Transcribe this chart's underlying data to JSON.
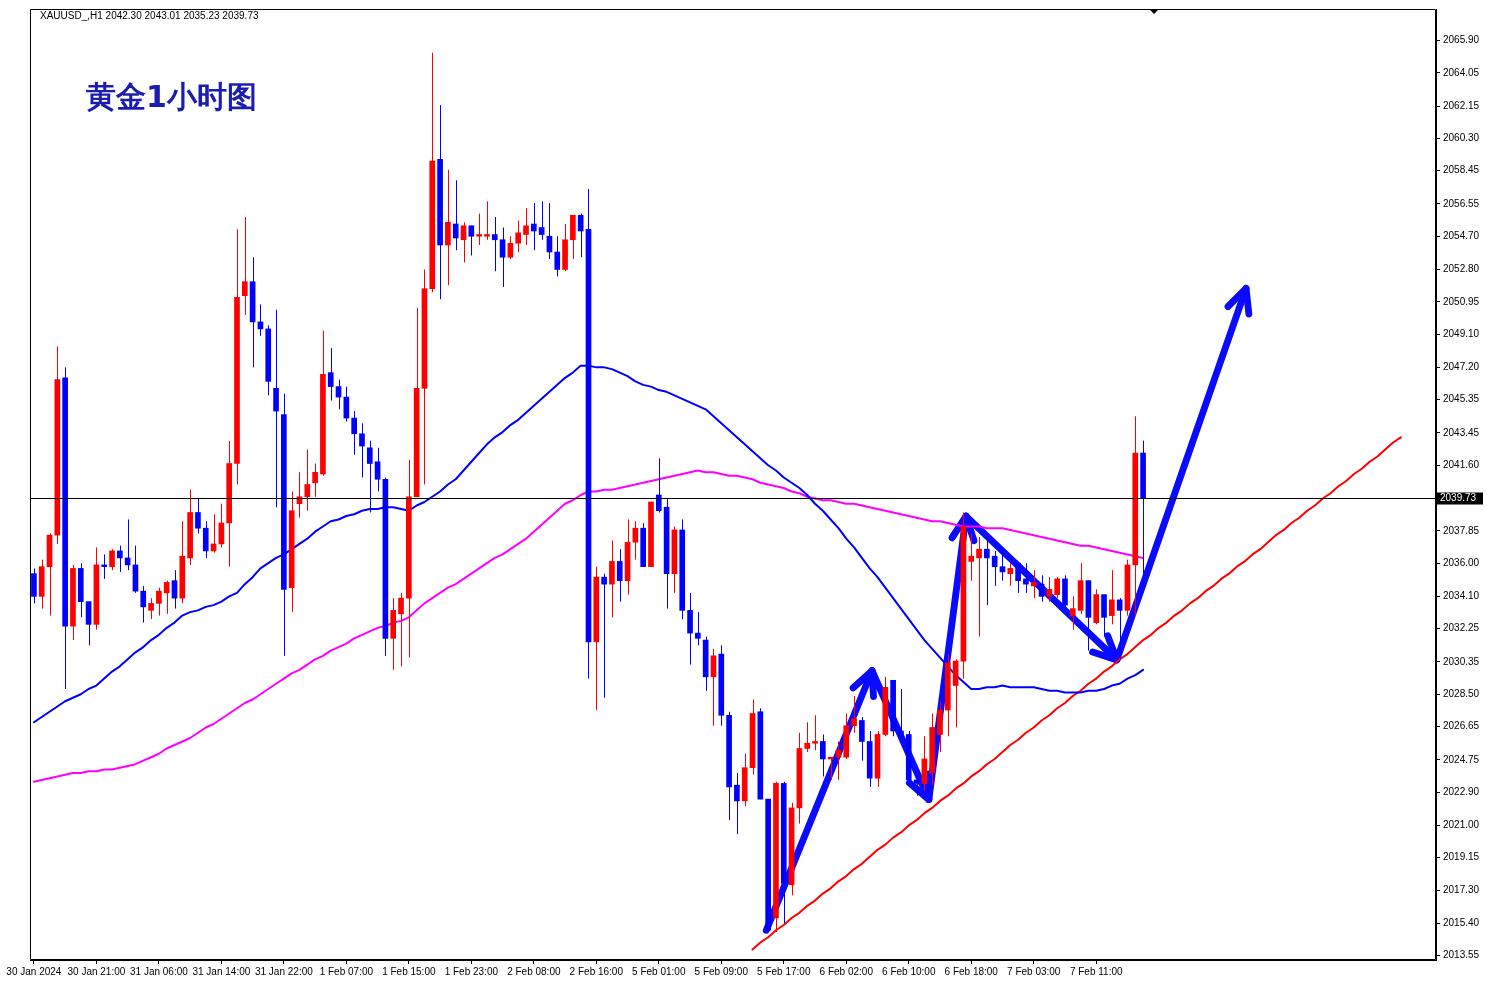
{
  "chart_data": {
    "type": "candlestick",
    "title": "黄金1小时图",
    "annotations": [
      "XAUUSD_,H1 2042.30 2043.01 2035.23 2039.73"
    ],
    "categories": [
      "30 Jan 2024",
      null,
      null,
      null,
      null,
      null,
      null,
      null,
      "30 Jan 21:00",
      null,
      null,
      null,
      null,
      null,
      null,
      null,
      "31 Jan 06:00",
      null,
      null,
      null,
      null,
      null,
      null,
      null,
      "31 Jan 14:00",
      null,
      null,
      null,
      null,
      null,
      null,
      null,
      "31 Jan 22:00",
      null,
      null,
      null,
      null,
      null,
      null,
      null,
      "1 Feb 07:00",
      null,
      null,
      null,
      null,
      null,
      null,
      null,
      "1 Feb 15:00",
      null,
      null,
      null,
      null,
      null,
      null,
      null,
      "1 Feb 23:00",
      null,
      null,
      null,
      null,
      null,
      null,
      null,
      "2 Feb 08:00",
      null,
      null,
      null,
      null,
      null,
      null,
      null,
      "2 Feb 16:00",
      null,
      null,
      null,
      null,
      null,
      null,
      null,
      "5 Feb 01:00",
      null,
      null,
      null,
      null,
      null,
      null,
      null,
      "5 Feb 09:00",
      null,
      null,
      null,
      null,
      null,
      null,
      null,
      "5 Feb 17:00",
      null,
      null,
      null,
      null,
      null,
      null,
      null,
      "6 Feb 02:00",
      null,
      null,
      null,
      null,
      null,
      null,
      null,
      "6 Feb 10:00",
      null,
      null,
      null,
      null,
      null,
      null,
      null,
      "6 Feb 18:00",
      null,
      null,
      null,
      null,
      null,
      null,
      null,
      "7 Feb 03:00",
      null,
      null,
      null,
      null,
      null,
      null,
      null,
      "7 Feb 11:00",
      null,
      null,
      null,
      null,
      null,
      null,
      null,
      null,
      null,
      null,
      null,
      null,
      null,
      null,
      null,
      null,
      null,
      null,
      null,
      null,
      null,
      null,
      null,
      null,
      null,
      null,
      null,
      null,
      null,
      null,
      null,
      null,
      null,
      null,
      null,
      null,
      null,
      null,
      null,
      null,
      null,
      null,
      null
    ],
    "ohlc": [
      [
        2035.4,
        2035.7,
        2033.7,
        2034.1
      ],
      [
        2034.1,
        2036.2,
        2033.4,
        2035.8
      ],
      [
        2035.8,
        2037.7,
        2033.0,
        2037.6
      ],
      [
        2037.6,
        2048.4,
        2037.1,
        2046.5
      ],
      [
        2046.6,
        2047.2,
        2028.8,
        2032.4
      ],
      [
        2032.4,
        2035.9,
        2031.6,
        2035.7
      ],
      [
        2035.7,
        2036.0,
        2032.9,
        2033.8
      ],
      [
        2033.8,
        2033.8,
        2031.3,
        2032.5
      ],
      [
        2032.5,
        2036.9,
        2032.2,
        2035.9
      ],
      [
        2035.9,
        2036.5,
        2035.1,
        2035.8
      ],
      [
        2035.8,
        2036.8,
        2035.6,
        2036.7
      ],
      [
        2036.7,
        2037.0,
        2035.5,
        2036.3
      ],
      [
        2036.3,
        2038.5,
        2035.6,
        2035.9
      ],
      [
        2035.9,
        2037.0,
        2034.3,
        2034.4
      ],
      [
        2034.4,
        2034.7,
        2032.6,
        2033.5
      ],
      [
        2033.3,
        2034.0,
        2032.8,
        2033.7
      ],
      [
        2033.7,
        2034.6,
        2033.0,
        2034.4
      ],
      [
        2034.3,
        2035.0,
        2033.1,
        2034.9
      ],
      [
        2035.0,
        2035.6,
        2033.4,
        2034.0
      ],
      [
        2034.0,
        2038.4,
        2033.7,
        2036.4
      ],
      [
        2036.3,
        2040.2,
        2035.9,
        2038.9
      ],
      [
        2038.9,
        2039.7,
        2037.7,
        2038.0
      ],
      [
        2038.0,
        2038.4,
        2036.3,
        2036.7
      ],
      [
        2036.7,
        2038.8,
        2036.6,
        2037.1
      ],
      [
        2037.1,
        2039.4,
        2036.9,
        2038.3
      ],
      [
        2038.3,
        2043.0,
        2035.8,
        2041.7
      ],
      [
        2041.7,
        2055.1,
        2040.5,
        2051.2
      ],
      [
        2051.3,
        2055.8,
        2050.2,
        2052.1
      ],
      [
        2052.1,
        2053.5,
        2047.2,
        2049.8
      ],
      [
        2049.8,
        2050.8,
        2049.0,
        2049.4
      ],
      [
        2049.4,
        2049.6,
        2045.6,
        2046.4
      ],
      [
        2046.0,
        2050.5,
        2039.2,
        2044.7
      ],
      [
        2044.5,
        2045.7,
        2030.7,
        2034.5
      ],
      [
        2034.6,
        2040.1,
        2033.2,
        2039.0
      ],
      [
        2039.4,
        2041.2,
        2038.6,
        2039.8
      ],
      [
        2039.8,
        2042.5,
        2039.0,
        2040.5
      ],
      [
        2040.6,
        2041.7,
        2039.8,
        2041.2
      ],
      [
        2041.1,
        2049.3,
        2041.0,
        2046.8
      ],
      [
        2046.9,
        2048.3,
        2045.3,
        2046.1
      ],
      [
        2046.1,
        2046.5,
        2044.8,
        2045.5
      ],
      [
        2045.5,
        2046.1,
        2044.1,
        2044.3
      ],
      [
        2044.3,
        2044.7,
        2042.2,
        2043.4
      ],
      [
        2043.4,
        2044.0,
        2040.9,
        2042.7
      ],
      [
        2042.6,
        2043.0,
        2038.9,
        2041.7
      ],
      [
        2041.8,
        2042.6,
        2040.1,
        2040.8
      ],
      [
        2040.8,
        2040.9,
        2030.7,
        2031.7
      ],
      [
        2031.7,
        2034.0,
        2029.9,
        2033.3
      ],
      [
        2033.1,
        2034.3,
        2030.1,
        2034.0
      ],
      [
        2034.0,
        2041.9,
        2030.6,
        2039.8
      ],
      [
        2039.8,
        2050.6,
        2039.8,
        2046.0
      ],
      [
        2046.0,
        2052.8,
        2040.5,
        2051.7
      ],
      [
        2051.7,
        2065.2,
        2051.5,
        2059.0
      ],
      [
        2059.1,
        2062.2,
        2051.1,
        2054.2
      ],
      [
        2054.2,
        2058.5,
        2051.9,
        2055.5
      ],
      [
        2055.4,
        2057.9,
        2053.9,
        2054.6
      ],
      [
        2054.5,
        2055.5,
        2053.2,
        2055.3
      ],
      [
        2055.3,
        2055.3,
        2053.6,
        2054.7
      ],
      [
        2054.7,
        2056.0,
        2054.2,
        2054.8
      ],
      [
        2054.7,
        2056.7,
        2054.5,
        2054.8
      ],
      [
        2054.8,
        2055.8,
        2052.7,
        2054.5
      ],
      [
        2054.5,
        2055.2,
        2051.8,
        2053.5
      ],
      [
        2053.5,
        2054.7,
        2053.4,
        2054.3
      ],
      [
        2054.3,
        2055.6,
        2053.8,
        2054.9
      ],
      [
        2054.8,
        2056.3,
        2054.2,
        2055.3
      ],
      [
        2055.4,
        2056.6,
        2053.9,
        2055.0
      ],
      [
        2055.2,
        2056.7,
        2054.5,
        2054.8
      ],
      [
        2054.7,
        2056.6,
        2053.4,
        2053.8
      ],
      [
        2053.8,
        2054.7,
        2052.4,
        2052.8
      ],
      [
        2052.8,
        2055.4,
        2052.7,
        2054.5
      ],
      [
        2054.5,
        2055.9,
        2053.4,
        2055.9
      ],
      [
        2055.9,
        2056.0,
        2053.5,
        2055.0
      ],
      [
        2055.1,
        2057.4,
        2029.4,
        2031.5
      ],
      [
        2031.5,
        2035.8,
        2027.6,
        2035.2
      ],
      [
        2035.2,
        2035.4,
        2028.3,
        2034.8
      ],
      [
        2034.8,
        2037.3,
        2032.9,
        2036.1
      ],
      [
        2036.1,
        2036.8,
        2033.8,
        2035.0
      ],
      [
        2035.0,
        2038.5,
        2034.2,
        2037.2
      ],
      [
        2037.2,
        2038.4,
        2036.2,
        2038.0
      ],
      [
        2038.0,
        2038.3,
        2035.8,
        2035.8
      ],
      [
        2035.8,
        2039.5,
        2035.8,
        2039.5
      ],
      [
        2039.9,
        2042.0,
        2038.9,
        2039.0
      ],
      [
        2039.2,
        2039.7,
        2033.4,
        2035.4
      ],
      [
        2035.4,
        2038.1,
        2034.3,
        2037.9
      ],
      [
        2037.9,
        2038.5,
        2032.8,
        2033.3
      ],
      [
        2033.3,
        2034.3,
        2030.2,
        2032.0
      ],
      [
        2032.0,
        2033.2,
        2031.3,
        2031.7
      ],
      [
        2031.6,
        2031.8,
        2028.7,
        2029.5
      ],
      [
        2029.5,
        2031.1,
        2026.7,
        2030.7
      ],
      [
        2030.8,
        2031.3,
        2026.7,
        2027.3
      ],
      [
        2027.3,
        2027.5,
        2021.3,
        2023.2
      ],
      [
        2023.3,
        2024.0,
        2020.5,
        2022.4
      ],
      [
        2022.4,
        2025.1,
        2022.1,
        2024.3
      ],
      [
        2024.3,
        2028.2,
        2023.9,
        2027.4
      ],
      [
        2027.5,
        2027.7,
        2022.5,
        2022.5
      ],
      [
        2022.5,
        2022.5,
        2014.9,
        2015.0
      ],
      [
        2015.7,
        2023.5,
        2014.9,
        2023.4
      ],
      [
        2023.4,
        2023.5,
        2015.4,
        2017.7
      ],
      [
        2017.6,
        2022.3,
        2017.0,
        2022.0
      ],
      [
        2022.0,
        2026.3,
        2021.1,
        2025.4
      ],
      [
        2025.4,
        2026.9,
        2025.2,
        2025.7
      ],
      [
        2025.7,
        2027.3,
        2025.3,
        2025.8
      ],
      [
        2025.8,
        2026.2,
        2023.8,
        2024.8
      ],
      [
        2024.8,
        2024.9,
        2023.6,
        2024.9
      ],
      [
        2024.9,
        2025.8,
        2023.6,
        2025.3
      ],
      [
        2024.9,
        2027.4,
        2024.8,
        2026.7
      ],
      [
        2026.7,
        2028.4,
        2026.3,
        2027.1
      ],
      [
        2027.0,
        2027.2,
        2024.7,
        2025.8
      ],
      [
        2025.8,
        2026.4,
        2023.2,
        2023.7
      ],
      [
        2023.7,
        2026.4,
        2023.2,
        2026.2
      ],
      [
        2026.2,
        2029.5,
        2026.1,
        2028.9
      ],
      [
        2029.3,
        2029.3,
        2026.1,
        2026.4
      ],
      [
        2026.4,
        2028.8,
        2026.0,
        2026.1
      ],
      [
        2026.2,
        2026.4,
        2023.2,
        2023.6
      ],
      [
        2023.6,
        2023.6,
        2022.7,
        2023.4
      ],
      [
        2023.4,
        2026.1,
        2023.0,
        2024.8
      ],
      [
        2024.0,
        2027.4,
        2023.3,
        2026.6
      ],
      [
        2026.2,
        2028.1,
        2025.2,
        2027.6
      ],
      [
        2027.6,
        2030.8,
        2026.1,
        2030.3
      ],
      [
        2029.0,
        2030.5,
        2026.6,
        2030.4
      ],
      [
        2030.4,
        2038.9,
        2029.4,
        2038.1
      ],
      [
        2036.1,
        2037.7,
        2035.0,
        2036.4
      ],
      [
        2036.3,
        2037.5,
        2031.8,
        2036.8
      ],
      [
        2036.8,
        2037.5,
        2033.6,
        2036.3
      ],
      [
        2036.4,
        2036.7,
        2034.7,
        2035.8
      ],
      [
        2035.8,
        2036.7,
        2035.0,
        2035.5
      ],
      [
        2035.4,
        2036.0,
        2034.7,
        2035.7
      ],
      [
        2036.0,
        2036.0,
        2034.3,
        2035.0
      ],
      [
        2035.1,
        2036.0,
        2034.3,
        2034.8
      ],
      [
        2034.7,
        2035.6,
        2034.0,
        2034.9
      ],
      [
        2034.8,
        2035.3,
        2033.8,
        2034.1
      ],
      [
        2034.1,
        2035.2,
        2033.8,
        2034.5
      ],
      [
        2034.2,
        2035.2,
        2034.0,
        2035.1
      ],
      [
        2035.1,
        2035.3,
        2033.3,
        2033.6
      ],
      [
        2033.0,
        2034.1,
        2032.2,
        2033.4
      ],
      [
        2033.3,
        2036.0,
        2033.1,
        2035.0
      ],
      [
        2035.0,
        2035.0,
        2031.0,
        2032.9
      ],
      [
        2032.6,
        2034.5,
        2032.5,
        2034.2
      ],
      [
        2034.2,
        2034.2,
        2031.8,
        2032.9
      ],
      [
        2033.0,
        2035.6,
        2032.5,
        2033.9
      ],
      [
        2033.9,
        2034.0,
        2030.5,
        2033.3
      ],
      [
        2033.3,
        2036.2,
        2033.0,
        2035.9
      ],
      [
        2035.9,
        2044.4,
        2033.0,
        2042.3
      ],
      [
        2042.3,
        2043.01,
        2035.23,
        2039.73
      ],
      null,
      null,
      null,
      null,
      null,
      null,
      null,
      null,
      null,
      null,
      null,
      null,
      null,
      null,
      null,
      null,
      null,
      null,
      null,
      null,
      null,
      null,
      null,
      null,
      null,
      null,
      null,
      null,
      null,
      null,
      null,
      null,
      null,
      null,
      null,
      null,
      null
    ],
    "colors": [
      "#0000ff",
      "#ff0000",
      "#ff0000",
      "#ff0000",
      "#0000ff",
      "#ff0000",
      "#0000ff",
      "#0000ff",
      "#ff0000",
      "#0000ff",
      "#ff0000",
      "#0000ff",
      "#0000ff",
      "#0000ff",
      "#0000ff",
      "#ff0000",
      "#ff0000",
      "#ff0000",
      "#0000ff",
      "#ff0000",
      "#ff0000",
      "#0000ff",
      "#0000ff",
      "#ff0000",
      "#ff0000",
      "#ff0000",
      "#ff0000",
      "#ff0000",
      "#0000ff",
      "#0000ff",
      "#0000ff",
      "#0000ff",
      "#0000ff",
      "#ff0000",
      "#ff0000",
      "#ff0000",
      "#ff0000",
      "#ff0000",
      "#0000ff",
      "#0000ff",
      "#0000ff",
      "#0000ff",
      "#0000ff",
      "#0000ff",
      "#0000ff",
      "#0000ff",
      "#ff0000",
      "#ff0000",
      "#ff0000",
      "#ff0000",
      "#ff0000",
      "#ff0000",
      "#0000ff",
      "#ff0000",
      "#0000ff",
      "#ff0000",
      "#0000ff",
      "#ff0000",
      "#ff0000",
      "#0000ff",
      "#0000ff",
      "#ff0000",
      "#ff0000",
      "#ff0000",
      "#0000ff",
      "#0000ff",
      "#0000ff",
      "#0000ff",
      "#ff0000",
      "#ff0000",
      "#0000ff",
      "#0000ff",
      "#ff0000",
      "#0000ff",
      "#ff0000",
      "#0000ff",
      "#ff0000",
      "#ff0000",
      "#0000ff",
      "#ff0000",
      "#0000ff",
      "#0000ff",
      "#ff0000",
      "#0000ff",
      "#0000ff",
      "#0000ff",
      "#0000ff",
      "#ff0000",
      "#0000ff",
      "#0000ff",
      "#0000ff",
      "#ff0000",
      "#ff0000",
      "#0000ff",
      "#0000ff",
      "#ff0000",
      "#0000ff",
      "#ff0000",
      "#ff0000",
      "#ff0000",
      "#ff0000",
      "#0000ff",
      "#ff0000",
      "#ff0000",
      "#ff0000",
      "#ff0000",
      "#0000ff",
      "#0000ff",
      "#ff0000",
      "#ff0000",
      "#0000ff",
      "#0000ff",
      "#0000ff",
      "#0000ff",
      "#ff0000",
      "#ff0000",
      "#ff0000",
      "#ff0000",
      "#ff0000",
      "#ff0000",
      "#ff0000",
      "#ff0000",
      "#0000ff",
      "#0000ff",
      "#0000ff",
      "#ff0000",
      "#0000ff",
      "#0000ff",
      "#ff0000",
      "#0000ff",
      "#ff0000",
      "#ff0000",
      "#0000ff",
      "#ff0000",
      "#ff0000",
      "#0000ff",
      "#ff0000",
      "#0000ff",
      "#ff0000",
      "#0000ff",
      "#ff0000",
      "#ff0000",
      "#0000ff",
      null,
      null,
      null,
      null,
      null,
      null,
      null,
      null,
      null,
      null,
      null,
      null,
      null,
      null,
      null,
      null,
      null,
      null,
      null,
      null,
      null,
      null,
      null,
      null,
      null,
      null,
      null,
      null,
      null,
      null,
      null,
      null,
      null,
      null,
      null,
      null,
      null
    ],
    "series": [
      {
        "type": "line",
        "color": "#0000ff",
        "values": [
          2026.9,
          2027.2,
          2027.5,
          2027.8,
          2028.1,
          2028.3,
          2028.5,
          2028.8,
          2029.0,
          2029.4,
          2029.8,
          2030.1,
          2030.5,
          2030.9,
          2031.2,
          2031.6,
          2031.9,
          2032.3,
          2032.6,
          2033.0,
          2033.2,
          2033.3,
          2033.5,
          2033.6,
          2033.8,
          2034.1,
          2034.3,
          2034.8,
          2035.2,
          2035.7,
          2036.0,
          2036.3,
          2036.5,
          2036.8,
          2037.1,
          2037.4,
          2037.8,
          2038.1,
          2038.4,
          2038.5,
          2038.7,
          2038.8,
          2039.0,
          2039.1,
          2039.1,
          2039.2,
          2039.2,
          2039.1,
          2039.0,
          2039.3,
          2039.5,
          2039.8,
          2040.1,
          2040.5,
          2040.8,
          2041.3,
          2041.8,
          2042.3,
          2042.8,
          2043.2,
          2043.5,
          2043.9,
          2044.2,
          2044.6,
          2045.0,
          2045.4,
          2045.8,
          2046.2,
          2046.6,
          2046.9,
          2047.3,
          2047.3,
          2047.2,
          2047.2,
          2047.1,
          2046.9,
          2046.7,
          2046.4,
          2046.2,
          2046.1,
          2045.9,
          2045.8,
          2045.6,
          2045.4,
          2045.2,
          2045.0,
          2044.8,
          2044.4,
          2044.0,
          2043.6,
          2043.2,
          2042.8,
          2042.4,
          2042.0,
          2041.6,
          2041.3,
          2040.9,
          2040.6,
          2040.3,
          2039.9,
          2039.4,
          2039.0,
          2038.5,
          2038.0,
          2037.4,
          2036.9,
          2036.3,
          2035.7,
          2035.2,
          2034.6,
          2034.0,
          2033.4,
          2032.8,
          2032.2,
          2031.6,
          2031.1,
          2030.6,
          2030.1,
          2029.6,
          2029.2,
          2028.8,
          2028.8,
          2028.9,
          2028.9,
          2029.0,
          2028.9,
          2028.9,
          2028.9,
          2028.9,
          2028.8,
          2028.7,
          2028.7,
          2028.6,
          2028.6,
          2028.6,
          2028.7,
          2028.7,
          2028.8,
          2029.0,
          2029.1,
          2029.4,
          2029.6,
          2029.9,
          null,
          null,
          null,
          null,
          null,
          null,
          null,
          null,
          null,
          null,
          null,
          null,
          null,
          null,
          null,
          null,
          null,
          null,
          null,
          null,
          null,
          null,
          null,
          null,
          null,
          null,
          null,
          null,
          null,
          null,
          null,
          null,
          null,
          null,
          null,
          null,
          null
        ]
      },
      {
        "type": "line",
        "color": "#ff00ff",
        "values": [
          2023.5,
          2023.6,
          2023.7,
          2023.8,
          2023.9,
          2024.0,
          2024.0,
          2024.1,
          2024.1,
          2024.2,
          2024.2,
          2024.3,
          2024.4,
          2024.5,
          2024.7,
          2024.9,
          2025.1,
          2025.4,
          2025.6,
          2025.8,
          2026.0,
          2026.3,
          2026.6,
          2026.8,
          2027.1,
          2027.4,
          2027.7,
          2028.0,
          2028.2,
          2028.5,
          2028.8,
          2029.1,
          2029.4,
          2029.7,
          2029.9,
          2030.2,
          2030.5,
          2030.7,
          2031.0,
          2031.2,
          2031.4,
          2031.7,
          2031.9,
          2032.1,
          2032.3,
          2032.4,
          2032.6,
          2032.7,
          2032.9,
          2033.3,
          2033.7,
          2034.0,
          2034.3,
          2034.6,
          2034.8,
          2035.1,
          2035.4,
          2035.7,
          2036.0,
          2036.3,
          2036.5,
          2036.8,
          2037.1,
          2037.4,
          2037.8,
          2038.2,
          2038.6,
          2039.0,
          2039.4,
          2039.6,
          2039.9,
          2040.1,
          2040.1,
          2040.2,
          2040.2,
          2040.3,
          2040.4,
          2040.5,
          2040.6,
          2040.7,
          2040.8,
          2040.9,
          2041.0,
          2041.1,
          2041.2,
          2041.3,
          2041.2,
          2041.2,
          2041.1,
          2041.0,
          2041.0,
          2040.9,
          2040.8,
          2040.6,
          2040.5,
          2040.4,
          2040.3,
          2040.1,
          2040.0,
          2039.8,
          2039.7,
          2039.6,
          2039.6,
          2039.5,
          2039.4,
          2039.4,
          2039.3,
          2039.2,
          2039.1,
          2039.0,
          2038.9,
          2038.8,
          2038.7,
          2038.6,
          2038.5,
          2038.4,
          2038.4,
          2038.3,
          2038.2,
          2038.1,
          2038.1,
          2038.1,
          2038.0,
          2038.0,
          2038.0,
          2037.9,
          2037.8,
          2037.7,
          2037.6,
          2037.5,
          2037.4,
          2037.3,
          2037.2,
          2037.1,
          2037.0,
          2037.0,
          2036.9,
          2036.8,
          2036.7,
          2036.6,
          2036.5,
          2036.4,
          2036.3,
          null,
          null,
          null,
          null,
          null,
          null,
          null,
          null,
          null,
          null,
          null,
          null,
          null,
          null,
          null,
          null,
          null,
          null,
          null,
          null,
          null,
          null,
          null,
          null,
          null,
          null,
          null,
          null,
          null,
          null,
          null,
          null,
          null,
          null,
          null,
          null,
          null
        ]
      },
      {
        "type": "line",
        "color": "#ff0000",
        "values": [
          null,
          null,
          null,
          null,
          null,
          null,
          null,
          null,
          null,
          null,
          null,
          null,
          null,
          null,
          null,
          null,
          null,
          null,
          null,
          null,
          null,
          null,
          null,
          null,
          null,
          null,
          null,
          null,
          null,
          null,
          null,
          null,
          null,
          null,
          null,
          null,
          null,
          null,
          null,
          null,
          null,
          null,
          null,
          null,
          null,
          null,
          null,
          null,
          null,
          null,
          null,
          null,
          null,
          null,
          null,
          null,
          null,
          null,
          null,
          null,
          null,
          null,
          null,
          null,
          null,
          null,
          null,
          null,
          null,
          null,
          null,
          null,
          null,
          null,
          null,
          null,
          null,
          null,
          null,
          null,
          null,
          null,
          null,
          null,
          null,
          null,
          null,
          null,
          null,
          null,
          null,
          null,
          2013.9,
          2014.3,
          2014.6,
          2015.0,
          2015.3,
          2015.7,
          2016.0,
          2016.4,
          2016.7,
          2017.1,
          2017.4,
          2017.8,
          2018.1,
          2018.5,
          2018.8,
          2019.2,
          2019.6,
          2019.9,
          2020.3,
          2020.6,
          2021.0,
          2021.3,
          2021.7,
          2022.0,
          2022.4,
          2022.7,
          2023.1,
          2023.4,
          2023.8,
          2024.1,
          2024.5,
          2024.8,
          2025.2,
          2025.6,
          2025.9,
          2026.3,
          2026.6,
          2027.0,
          2027.3,
          2027.7,
          2028.0,
          2028.4,
          2028.7,
          2029.1,
          2029.4,
          2029.8,
          2030.1,
          2030.5,
          2030.8,
          2031.2,
          2031.6,
          2031.9,
          2032.3,
          2032.6,
          2033.0,
          2033.3,
          2033.7,
          2034.0,
          2034.4,
          2034.7,
          2035.1,
          2035.4,
          2035.8,
          2036.1,
          2036.5,
          2036.8,
          2037.2,
          2037.6,
          2037.9,
          2038.3,
          2038.6,
          2039.0,
          2039.3,
          2039.7,
          2040.0,
          2040.4,
          2040.7,
          2041.1,
          2041.4,
          2041.8,
          2042.1,
          2042.5,
          2042.9,
          2043.2,
          null,
          null,
          null,
          null
        ]
      }
    ],
    "ylim": [
      2013.3,
      2067.7
    ],
    "yticks": [
      {
        "value": 2065.9,
        "label": "2065.90"
      },
      2064.05,
      2062.15,
      {
        "value": 2060.3,
        "label": "2060.30"
      },
      2058.45,
      2056.55,
      {
        "value": 2054.7,
        "label": "2054.70"
      },
      {
        "value": 2052.8,
        "label": "2052.80"
      },
      2050.95,
      {
        "value": 2049.1,
        "label": "2049.10"
      },
      {
        "value": 2047.2,
        "label": "2047.20"
      },
      2045.35,
      2043.45,
      {
        "value": 2041.6,
        "label": "2041.60"
      },
      2037.85,
      {
        "value": 2036,
        "label": "2036.00"
      },
      {
        "value": 2034.1,
        "label": "2034.10"
      },
      2032.25,
      2030.35,
      {
        "value": 2028.5,
        "label": "2028.50"
      },
      2026.65,
      2024.75,
      {
        "value": 2022.9,
        "label": "2022.90"
      },
      {
        "value": 2021,
        "label": "2021.00"
      },
      2019.15,
      {
        "value": 2017.3,
        "label": "2017.30"
      },
      {
        "value": 2015.4,
        "label": "2015.40"
      },
      2013.55
    ],
    "ref_lines": [
      {
        "axis": "y",
        "value": 2039.73,
        "label": "2039.73",
        "color": "#000000"
      }
    ],
    "marker": "none",
    "line_style": "solid"
  }
}
